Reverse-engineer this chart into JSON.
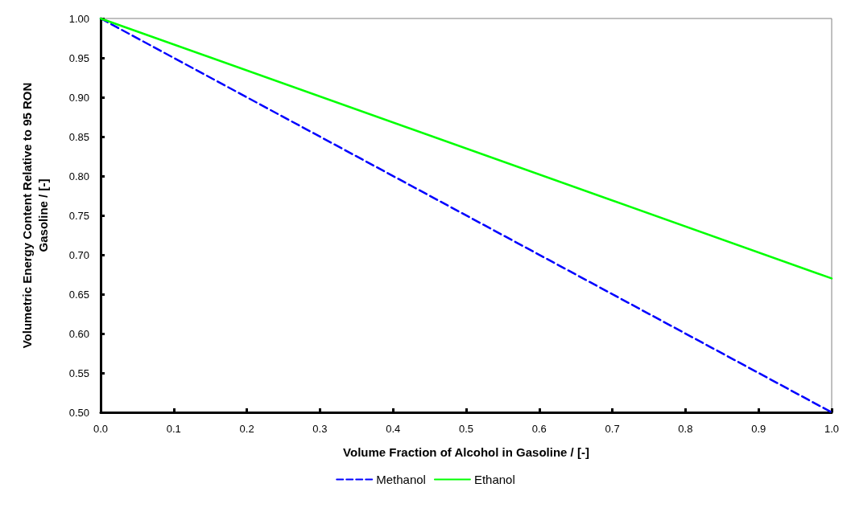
{
  "chart_data": {
    "type": "line",
    "xlabel": "Volume Fraction of Alcohol in Gasoline / [-]",
    "ylabel": "Volumetric Energy Content Relative to 95 RON\nGasoline / [-]",
    "x": [
      0,
      1
    ],
    "series": [
      {
        "name": "Methanol",
        "color": "#0000ff",
        "values": [
          1.0,
          0.5
        ],
        "line_style": "dashed"
      },
      {
        "name": "Ethanol",
        "color": "#00ff00",
        "values": [
          1.0,
          0.67
        ],
        "line_style": "solid"
      }
    ],
    "xlim": [
      0,
      1
    ],
    "xticks": [
      {
        "value": 0,
        "label": "0.0"
      },
      {
        "value": 0.1,
        "label": "0.1"
      },
      {
        "value": 0.2,
        "label": "0.2"
      },
      {
        "value": 0.3,
        "label": "0.3"
      },
      {
        "value": 0.4,
        "label": "0.4"
      },
      {
        "value": 0.5,
        "label": "0.5"
      },
      {
        "value": 0.6,
        "label": "0.6"
      },
      {
        "value": 0.7,
        "label": "0.7"
      },
      {
        "value": 0.8,
        "label": "0.8"
      },
      {
        "value": 0.9,
        "label": "0.9"
      },
      {
        "value": 1,
        "label": "1.0"
      }
    ],
    "ylim": [
      0.5,
      1
    ],
    "yticks": [
      {
        "value": 0.5,
        "label": "0.50"
      },
      {
        "value": 0.55,
        "label": "0.55"
      },
      {
        "value": 0.6,
        "label": "0.60"
      },
      {
        "value": 0.65,
        "label": "0.65"
      },
      {
        "value": 0.7,
        "label": "0.70"
      },
      {
        "value": 0.75,
        "label": "0.75"
      },
      {
        "value": 0.8,
        "label": "0.80"
      },
      {
        "value": 0.85,
        "label": "0.85"
      },
      {
        "value": 0.9,
        "label": "0.90"
      },
      {
        "value": 0.95,
        "label": "0.95"
      },
      {
        "value": 1,
        "label": "1.00"
      }
    ],
    "grid": false,
    "legend": "bottom",
    "marker": "none"
  }
}
